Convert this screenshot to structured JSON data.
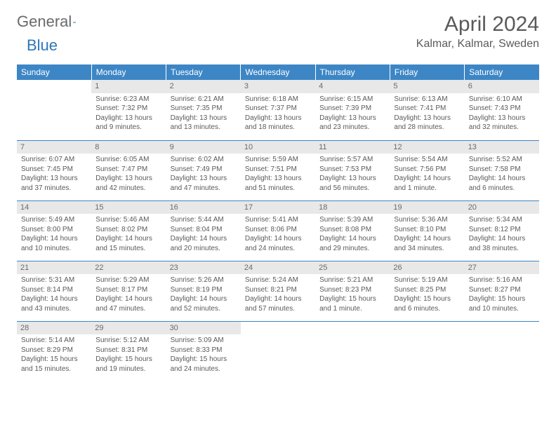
{
  "logo": {
    "word1": "General",
    "word2": "Blue"
  },
  "title": "April 2024",
  "location": "Kalmar, Kalmar, Sweden",
  "colors": {
    "header_bg": "#3d86c6",
    "header_text": "#ffffff",
    "daynum_bg": "#e8e8e8",
    "text": "#5a5a5a",
    "logo_gray": "#6a6a6a",
    "logo_blue": "#2a78b8",
    "page_bg": "#ffffff"
  },
  "day_headers": [
    "Sunday",
    "Monday",
    "Tuesday",
    "Wednesday",
    "Thursday",
    "Friday",
    "Saturday"
  ],
  "weeks": [
    [
      null,
      {
        "n": "1",
        "sunrise": "6:23 AM",
        "sunset": "7:32 PM",
        "daylight": "13 hours and 9 minutes."
      },
      {
        "n": "2",
        "sunrise": "6:21 AM",
        "sunset": "7:35 PM",
        "daylight": "13 hours and 13 minutes."
      },
      {
        "n": "3",
        "sunrise": "6:18 AM",
        "sunset": "7:37 PM",
        "daylight": "13 hours and 18 minutes."
      },
      {
        "n": "4",
        "sunrise": "6:15 AM",
        "sunset": "7:39 PM",
        "daylight": "13 hours and 23 minutes."
      },
      {
        "n": "5",
        "sunrise": "6:13 AM",
        "sunset": "7:41 PM",
        "daylight": "13 hours and 28 minutes."
      },
      {
        "n": "6",
        "sunrise": "6:10 AM",
        "sunset": "7:43 PM",
        "daylight": "13 hours and 32 minutes."
      }
    ],
    [
      {
        "n": "7",
        "sunrise": "6:07 AM",
        "sunset": "7:45 PM",
        "daylight": "13 hours and 37 minutes."
      },
      {
        "n": "8",
        "sunrise": "6:05 AM",
        "sunset": "7:47 PM",
        "daylight": "13 hours and 42 minutes."
      },
      {
        "n": "9",
        "sunrise": "6:02 AM",
        "sunset": "7:49 PM",
        "daylight": "13 hours and 47 minutes."
      },
      {
        "n": "10",
        "sunrise": "5:59 AM",
        "sunset": "7:51 PM",
        "daylight": "13 hours and 51 minutes."
      },
      {
        "n": "11",
        "sunrise": "5:57 AM",
        "sunset": "7:53 PM",
        "daylight": "13 hours and 56 minutes."
      },
      {
        "n": "12",
        "sunrise": "5:54 AM",
        "sunset": "7:56 PM",
        "daylight": "14 hours and 1 minute."
      },
      {
        "n": "13",
        "sunrise": "5:52 AM",
        "sunset": "7:58 PM",
        "daylight": "14 hours and 6 minutes."
      }
    ],
    [
      {
        "n": "14",
        "sunrise": "5:49 AM",
        "sunset": "8:00 PM",
        "daylight": "14 hours and 10 minutes."
      },
      {
        "n": "15",
        "sunrise": "5:46 AM",
        "sunset": "8:02 PM",
        "daylight": "14 hours and 15 minutes."
      },
      {
        "n": "16",
        "sunrise": "5:44 AM",
        "sunset": "8:04 PM",
        "daylight": "14 hours and 20 minutes."
      },
      {
        "n": "17",
        "sunrise": "5:41 AM",
        "sunset": "8:06 PM",
        "daylight": "14 hours and 24 minutes."
      },
      {
        "n": "18",
        "sunrise": "5:39 AM",
        "sunset": "8:08 PM",
        "daylight": "14 hours and 29 minutes."
      },
      {
        "n": "19",
        "sunrise": "5:36 AM",
        "sunset": "8:10 PM",
        "daylight": "14 hours and 34 minutes."
      },
      {
        "n": "20",
        "sunrise": "5:34 AM",
        "sunset": "8:12 PM",
        "daylight": "14 hours and 38 minutes."
      }
    ],
    [
      {
        "n": "21",
        "sunrise": "5:31 AM",
        "sunset": "8:14 PM",
        "daylight": "14 hours and 43 minutes."
      },
      {
        "n": "22",
        "sunrise": "5:29 AM",
        "sunset": "8:17 PM",
        "daylight": "14 hours and 47 minutes."
      },
      {
        "n": "23",
        "sunrise": "5:26 AM",
        "sunset": "8:19 PM",
        "daylight": "14 hours and 52 minutes."
      },
      {
        "n": "24",
        "sunrise": "5:24 AM",
        "sunset": "8:21 PM",
        "daylight": "14 hours and 57 minutes."
      },
      {
        "n": "25",
        "sunrise": "5:21 AM",
        "sunset": "8:23 PM",
        "daylight": "15 hours and 1 minute."
      },
      {
        "n": "26",
        "sunrise": "5:19 AM",
        "sunset": "8:25 PM",
        "daylight": "15 hours and 6 minutes."
      },
      {
        "n": "27",
        "sunrise": "5:16 AM",
        "sunset": "8:27 PM",
        "daylight": "15 hours and 10 minutes."
      }
    ],
    [
      {
        "n": "28",
        "sunrise": "5:14 AM",
        "sunset": "8:29 PM",
        "daylight": "15 hours and 15 minutes."
      },
      {
        "n": "29",
        "sunrise": "5:12 AM",
        "sunset": "8:31 PM",
        "daylight": "15 hours and 19 minutes."
      },
      {
        "n": "30",
        "sunrise": "5:09 AM",
        "sunset": "8:33 PM",
        "daylight": "15 hours and 24 minutes."
      },
      null,
      null,
      null,
      null
    ]
  ],
  "labels": {
    "sunrise": "Sunrise:",
    "sunset": "Sunset:",
    "daylight": "Daylight:"
  }
}
